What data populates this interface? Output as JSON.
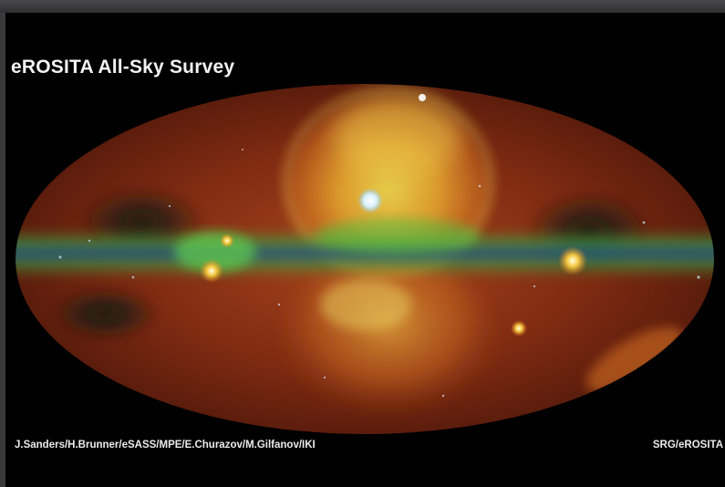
{
  "image": {
    "title": "eROSITA All-Sky Survey",
    "credit_left": "J.Sanders/H.Brunner/eSASS/MPE/E.Churazov/M.Gilfanov/IKI",
    "credit_right": "SRG/eROSITA",
    "depicts": "all-sky-map-ellipse",
    "colors": {
      "background": "#000000",
      "frame": "#3a3a3c",
      "diffuse_red": "#8a2a10",
      "bubble_orange": "#e08a20",
      "bubble_yellow": "#e8d84a",
      "plane_green": "#5ac84a",
      "plane_blue": "#1e4fa0",
      "text": "#eaeaea"
    }
  }
}
